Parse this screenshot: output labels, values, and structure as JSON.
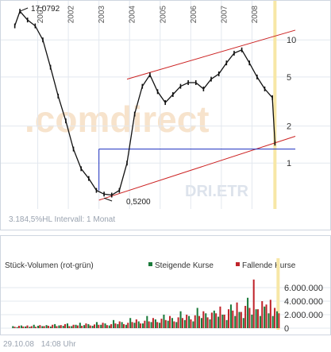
{
  "price_chart": {
    "max_label": "17,0792",
    "min_label": "0,5200",
    "info_text": "3.184,5%HL Intervall: 1 Monat",
    "watermark_logo": ".comdirect",
    "watermark_symbol": "DRI.ETR"
  },
  "volume_chart": {
    "title": "Stück-Volumen (rot-grün)",
    "legend_rising": "Steigende Kurse",
    "legend_falling": "Fallende Kurse",
    "rising_color": "#1a7a3a",
    "falling_color": "#c0242b"
  },
  "footer": {
    "date": "29.10.08",
    "time": "14:08 Uhr"
  },
  "chart_data": [
    {
      "type": "line",
      "title": "",
      "xlabel": "",
      "ylabel": "",
      "y_scale": "log",
      "years": [
        "2001",
        "2002",
        "2003",
        "2004",
        "2005",
        "2006",
        "2007",
        "2008"
      ],
      "y_ticks": [
        10,
        5,
        2,
        1
      ],
      "ylim": [
        0.45,
        19
      ],
      "series": [
        {
          "x": [
            "2000-04",
            "2000-06",
            "2000-09",
            "2000-12",
            "2001-03",
            "2001-06",
            "2001-09",
            "2001-12",
            "2002-03",
            "2002-06",
            "2002-09",
            "2002-12",
            "2003-03",
            "2003-06",
            "2003-09",
            "2003-12",
            "2004-03",
            "2004-06",
            "2004-09",
            "2004-12",
            "2005-03",
            "2005-06",
            "2005-09",
            "2005-12",
            "2006-03",
            "2006-06",
            "2006-09",
            "2006-12",
            "2007-03",
            "2007-06",
            "2007-09",
            "2007-12",
            "2008-03",
            "2008-06",
            "2008-09",
            "2008-10"
          ],
          "y": [
            13.0,
            17.08,
            14.5,
            13.0,
            10.0,
            6.0,
            3.5,
            2.2,
            1.3,
            0.9,
            0.75,
            0.6,
            0.56,
            0.55,
            0.6,
            1.0,
            2.5,
            4.2,
            5.2,
            3.8,
            3.1,
            3.6,
            4.2,
            4.5,
            4.5,
            4.0,
            4.8,
            5.3,
            6.5,
            7.8,
            8.3,
            6.5,
            5.0,
            4.0,
            3.4,
            1.45
          ]
        }
      ],
      "annotations": [
        {
          "label": "high",
          "x": "2000-06",
          "y": 17.08
        },
        {
          "label": "low",
          "x": "2003-03",
          "y": 0.52
        }
      ],
      "channel_upper": {
        "x": [
          "2003-12",
          "2009-06"
        ],
        "y": [
          4.8,
          12.0
        ]
      },
      "channel_lower": {
        "x": [
          "2003-01",
          "2009-06"
        ],
        "y": [
          0.5,
          1.65
        ]
      },
      "horizontal_line": {
        "x": [
          "2003-01",
          "2009-06"
        ],
        "y": 1.3
      },
      "highlight_x": "2008-10",
      "grid": true
    },
    {
      "type": "bar",
      "title": "Stück-Volumen (rot-grün)",
      "y_ticks": [
        0,
        2000000,
        4000000,
        6000000
      ],
      "y_tick_labels": [
        "0",
        "2.000.000",
        "4.000.000",
        "6.000.000"
      ],
      "ylim": [
        0,
        8000000
      ],
      "series": [
        {
          "name": "Steigende Kurse",
          "values": [
            300000,
            150000,
            400000,
            250000,
            200000,
            500000,
            350000,
            300000,
            450000,
            250000,
            600000,
            400000,
            350000,
            700000,
            300000,
            500000,
            800000,
            450000,
            600000,
            350000,
            900000,
            500000,
            700000,
            400000,
            1200000,
            600000,
            900000,
            500000,
            1500000,
            800000,
            1000000,
            700000,
            1800000,
            900000,
            1300000,
            800000,
            2000000,
            1100000,
            1500000,
            900000,
            2500000,
            1200000,
            1800000,
            1000000,
            3000000,
            1500000,
            2200000,
            1300000,
            2600000,
            1700000,
            2000000,
            1200000,
            3500000,
            1800000,
            2400000,
            1500000,
            4500000,
            2000000,
            2800000,
            1800000,
            3200000,
            2200000,
            1800000,
            2500000
          ]
        },
        {
          "name": "Fallende Kurse",
          "values": [
            200000,
            350000,
            250000,
            400000,
            300000,
            200000,
            450000,
            300000,
            350000,
            500000,
            300000,
            450000,
            600000,
            300000,
            500000,
            400000,
            350000,
            700000,
            400000,
            550000,
            500000,
            800000,
            450000,
            600000,
            700000,
            1000000,
            600000,
            800000,
            900000,
            1300000,
            700000,
            1100000,
            1000000,
            1500000,
            900000,
            1400000,
            1200000,
            1800000,
            1000000,
            1600000,
            1500000,
            2000000,
            1300000,
            1900000,
            1800000,
            2500000,
            1600000,
            2300000,
            2200000,
            3200000,
            2000000,
            2800000,
            2600000,
            3800000,
            2400000,
            3300000,
            3000000,
            7200000,
            2800000,
            4000000,
            3500000,
            4200000,
            3000000,
            2200000
          ]
        }
      ],
      "highlight_index": 63,
      "grid": true
    }
  ]
}
